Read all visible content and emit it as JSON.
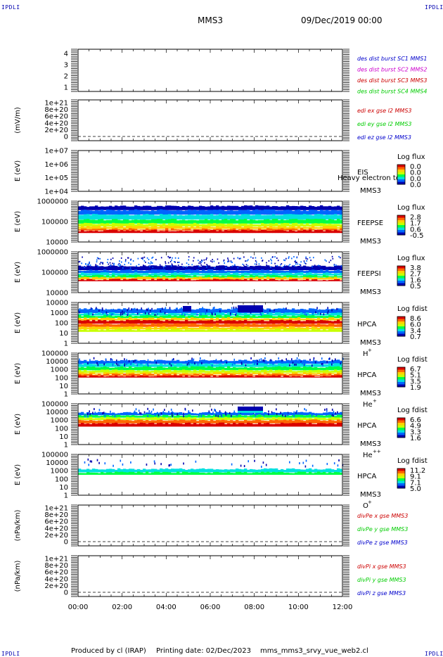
{
  "header": {
    "title": "MMS3",
    "date": "09/Dec/2019 00:00",
    "corner_label": "IPDLI"
  },
  "footer": {
    "produced_by": "Produced by cl (IRAP)",
    "printing_date": "Printing date: 02/Dec/2023",
    "script_name": "mms_mms3_srvy_vue_web2.cl"
  },
  "colors": {
    "blue": "#0000cc",
    "magenta": "#cc00cc",
    "red": "#cc0000",
    "green": "#00cc00",
    "colorbar": [
      "#d90000",
      "#ff6600",
      "#ffd000",
      "#c8ff00",
      "#00ff44",
      "#00e0e0",
      "#0066ff",
      "#0000b0"
    ]
  },
  "chart_data": {
    "type": "heatmap",
    "x_axis": {
      "range": [
        "00:00",
        "12:00"
      ],
      "tick_labels": [
        "00:00",
        "02:00",
        "04:00",
        "06:00",
        "08:00",
        "10:00",
        "12:00"
      ]
    },
    "panels": [
      {
        "id": "sc",
        "kind": "lines",
        "ylabel": "",
        "yticks": [
          "4",
          "3",
          "2",
          "1"
        ],
        "legend": [
          {
            "text": "des dist burst SC1 MMS1",
            "color": "#0000cc"
          },
          {
            "text": "des dist burst SC2 MMS2",
            "color": "#cc00cc"
          },
          {
            "text": "des dist burst SC3 MMS3",
            "color": "#cc0000"
          },
          {
            "text": "des dist burst SC4 MMS4",
            "color": "#00cc00"
          }
        ]
      },
      {
        "id": "edi",
        "kind": "lines",
        "ylabel": "(mV/m)",
        "yticks": [
          "1e+21",
          "8e+20",
          "6e+20",
          "4e+20",
          "2e+20",
          "0"
        ],
        "legend": [
          {
            "text": "edi ex gse l2 MMS3",
            "color": "#cc0000"
          },
          {
            "text": "edi ey gse l2 MMS3",
            "color": "#00cc00"
          },
          {
            "text": "edi ez gse l2 MMS3",
            "color": "#0000cc"
          }
        ]
      },
      {
        "id": "eis",
        "kind": "spectrogram",
        "ylabel": "E (eV)",
        "yticks": [
          "1e+07",
          "1e+06",
          "1e+05",
          "1e+04"
        ],
        "instrument": [
          "EIS",
          "MMS3"
        ],
        "species": "",
        "overlay": "Heavy electron to",
        "cb_title": "Log flux",
        "cb_values": [
          "0.0",
          "0.0",
          "0.0",
          "0.0"
        ]
      },
      {
        "id": "feepse",
        "kind": "spectrogram",
        "ylabel": "E (eV)",
        "yticks": [
          "1000000",
          "100000",
          "10000"
        ],
        "instrument": [
          "FEEPSE",
          "MMS3"
        ],
        "species": "",
        "cb_title": "Log flux",
        "cb_values": [
          "2.8",
          "1.7",
          "0.6",
          "-0.5"
        ]
      },
      {
        "id": "feepsi",
        "kind": "spectrogram",
        "ylabel": "E (eV)",
        "yticks": [
          "1000000",
          "100000",
          "10000"
        ],
        "instrument": [
          "FEEPSI",
          "MMS3"
        ],
        "species": "",
        "cb_title": "Log flux",
        "cb_values": [
          "3.8",
          "2.7",
          "1.6",
          "0.5"
        ]
      },
      {
        "id": "hpca_h",
        "kind": "spectrogram",
        "ylabel": "E (eV)",
        "yticks": [
          "10000",
          "1000",
          "100",
          "10",
          "1"
        ],
        "instrument": [
          "HPCA",
          "MMS3"
        ],
        "species": "H",
        "sup": "+",
        "cb_title": "Log fdist",
        "cb_values": [
          "8.6",
          "6.0",
          "3.4",
          "0.7"
        ]
      },
      {
        "id": "hpca_he1",
        "kind": "spectrogram",
        "ylabel": "E (eV)",
        "yticks": [
          "100000",
          "10000",
          "1000",
          "100",
          "10",
          "1"
        ],
        "instrument": [
          "HPCA",
          "MMS3"
        ],
        "species": "He",
        "sup": "+",
        "cb_title": "Log fdist",
        "cb_values": [
          "6.7",
          "5.1",
          "3.5",
          "1.9"
        ]
      },
      {
        "id": "hpca_he2",
        "kind": "spectrogram",
        "ylabel": "E (eV)",
        "yticks": [
          "100000",
          "10000",
          "1000",
          "100",
          "10",
          "1"
        ],
        "instrument": [
          "HPCA",
          "MMS3"
        ],
        "species": "He",
        "sup": "++",
        "cb_title": "Log fdist",
        "cb_values": [
          "6.6",
          "4.9",
          "3.3",
          "1.6"
        ]
      },
      {
        "id": "hpca_o",
        "kind": "spectrogram",
        "ylabel": "E (eV)",
        "yticks": [
          "100000",
          "10000",
          "1000",
          "100",
          "10",
          "1"
        ],
        "instrument": [
          "HPCA",
          "MMS3"
        ],
        "species": "O",
        "sup": "+",
        "cb_title": "Log fdist",
        "cb_values": [
          "11.2",
          "9.1",
          "7.1",
          "5.0"
        ]
      },
      {
        "id": "divpe",
        "kind": "lines",
        "ylabel": "(nPa/km)",
        "yticks": [
          "1e+21",
          "8e+20",
          "6e+20",
          "4e+20",
          "2e+20",
          "0"
        ],
        "legend": [
          {
            "text": "divPe x gse MMS3",
            "color": "#cc0000"
          },
          {
            "text": "divPe y gse MMS3",
            "color": "#00cc00"
          },
          {
            "text": "divPe z gse MMS3",
            "color": "#0000cc"
          }
        ]
      },
      {
        "id": "divpi",
        "kind": "lines",
        "ylabel": "(nPa/km)",
        "yticks": [
          "1e+21",
          "8e+20",
          "6e+20",
          "4e+20",
          "2e+20",
          "0"
        ],
        "legend": [
          {
            "text": "divPi x gse MMS3",
            "color": "#cc0000"
          },
          {
            "text": "divPi y gse MMS3",
            "color": "#00cc00"
          },
          {
            "text": "divPi z gse MMS3",
            "color": "#0000cc"
          }
        ]
      }
    ]
  }
}
